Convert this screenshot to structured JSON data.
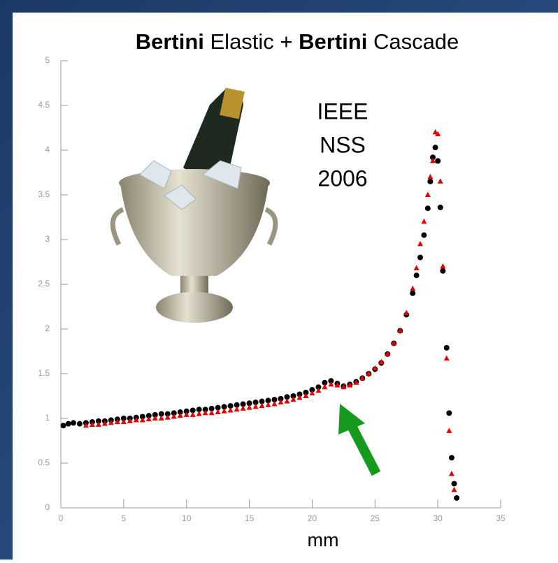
{
  "chart_data": {
    "type": "scatter",
    "title": [
      {
        "text": "Bertini",
        "bold": true
      },
      {
        "text": " Elastic + ",
        "bold": false
      },
      {
        "text": "Bertini",
        "bold": true
      },
      {
        "text": " Cascade",
        "bold": false
      }
    ],
    "annotation": [
      "IEEE",
      "NSS",
      "2006"
    ],
    "x_label": "mm",
    "xlim": [
      0,
      35
    ],
    "xticks": [
      0,
      5,
      10,
      15,
      20,
      25,
      30,
      35
    ],
    "ylim": [
      0,
      5
    ],
    "yticks": [
      0,
      0.5,
      1,
      1.5,
      2,
      2.5,
      3,
      3.5,
      4,
      4.5,
      5
    ],
    "series": [
      {
        "color": "#000000",
        "marker": "circle",
        "x": [
          0.2,
          0.6,
          1,
          1.5,
          2,
          2.5,
          3,
          3.5,
          4,
          4.5,
          5,
          5.5,
          6,
          6.5,
          7,
          7.5,
          8,
          8.5,
          9,
          9.5,
          10,
          10.5,
          11,
          11.5,
          12,
          12.5,
          13,
          13.5,
          14,
          14.5,
          15,
          15.5,
          16,
          16.5,
          17,
          17.5,
          18,
          18.5,
          19,
          19.5,
          20,
          20.5,
          21,
          21.5,
          22,
          22.5,
          23,
          23.5,
          24,
          24.5,
          25,
          25.5,
          26,
          26.5,
          27,
          27.5,
          28,
          28.3,
          28.6,
          28.9,
          29.2,
          29.4,
          29.6,
          29.8,
          30,
          30.2,
          30.4,
          30.7,
          30.9,
          31.1,
          31.3,
          31.5
        ],
        "values": [
          0.92,
          0.94,
          0.95,
          0.94,
          0.95,
          0.96,
          0.97,
          0.97,
          0.98,
          0.99,
          1.0,
          1.0,
          1.01,
          1.02,
          1.03,
          1.04,
          1.05,
          1.05,
          1.06,
          1.07,
          1.08,
          1.09,
          1.1,
          1.1,
          1.11,
          1.12,
          1.13,
          1.14,
          1.15,
          1.16,
          1.17,
          1.18,
          1.19,
          1.2,
          1.21,
          1.22,
          1.24,
          1.25,
          1.27,
          1.29,
          1.32,
          1.35,
          1.4,
          1.42,
          1.39,
          1.36,
          1.38,
          1.41,
          1.45,
          1.5,
          1.55,
          1.62,
          1.72,
          1.84,
          1.98,
          2.16,
          2.4,
          2.6,
          2.8,
          3.05,
          3.35,
          3.65,
          3.92,
          4.03,
          3.88,
          3.36,
          2.65,
          1.79,
          1.06,
          0.56,
          0.27,
          0.11
        ]
      },
      {
        "color": "#e00000",
        "marker": "triangle",
        "x": [
          2,
          2.5,
          3,
          3.5,
          4,
          4.5,
          5,
          5.5,
          6,
          6.5,
          7,
          7.5,
          8,
          8.5,
          9,
          9.5,
          10,
          10.5,
          11,
          11.5,
          12,
          12.5,
          13,
          13.5,
          14,
          14.5,
          15,
          15.5,
          16,
          16.5,
          17,
          17.5,
          18,
          18.5,
          19,
          19.5,
          20,
          20.5,
          21,
          21.5,
          22,
          22.5,
          23,
          23.5,
          24,
          24.5,
          25,
          25.5,
          26,
          26.5,
          27,
          27.5,
          28,
          28.3,
          28.6,
          28.9,
          29.2,
          29.4,
          29.6,
          29.8,
          30,
          30.2,
          30.4,
          30.7,
          30.9,
          31.1,
          31.3
        ],
        "values": [
          0.92,
          0.93,
          0.93,
          0.94,
          0.95,
          0.96,
          0.96,
          0.97,
          0.98,
          0.98,
          0.99,
          1.0,
          1.0,
          1.01,
          1.02,
          1.03,
          1.04,
          1.04,
          1.05,
          1.06,
          1.06,
          1.07,
          1.08,
          1.09,
          1.1,
          1.11,
          1.12,
          1.13,
          1.14,
          1.15,
          1.16,
          1.18,
          1.19,
          1.21,
          1.23,
          1.25,
          1.28,
          1.31,
          1.35,
          1.38,
          1.37,
          1.35,
          1.37,
          1.4,
          1.45,
          1.5,
          1.56,
          1.63,
          1.72,
          1.84,
          1.98,
          2.18,
          2.45,
          2.68,
          2.95,
          3.2,
          3.5,
          3.7,
          3.88,
          4.2,
          4.18,
          3.65,
          2.7,
          1.67,
          0.86,
          0.38,
          0.2
        ]
      }
    ]
  }
}
